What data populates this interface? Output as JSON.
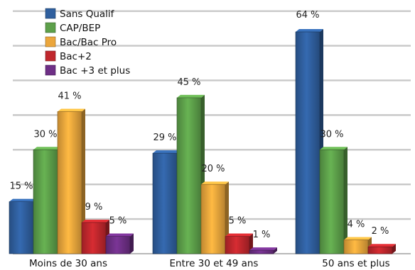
{
  "chart_data": {
    "type": "bar",
    "title": "",
    "xlabel": "",
    "ylabel": "",
    "ylim": [
      0,
      70
    ],
    "grid": true,
    "legend_position": "top-left",
    "value_suffix": " %",
    "categories": [
      "Moins de 30 ans",
      "Entre 30 et 49 ans",
      "50 ans et plus"
    ],
    "series": [
      {
        "name": "Sans Qualif",
        "color": "#2f5f9e",
        "values": [
          15,
          29,
          64
        ]
      },
      {
        "name": "CAP/BEP",
        "color": "#5da04a",
        "values": [
          30,
          45,
          30
        ]
      },
      {
        "name": "Bac/Bac Pro",
        "color": "#eba63c",
        "values": [
          41,
          20,
          4
        ]
      },
      {
        "name": "Bac+2",
        "color": "#c0272d",
        "values": [
          9,
          5,
          2
        ]
      },
      {
        "name": "Bac +3 et plus",
        "color": "#6e2f86",
        "values": [
          5,
          1,
          null
        ]
      }
    ]
  }
}
